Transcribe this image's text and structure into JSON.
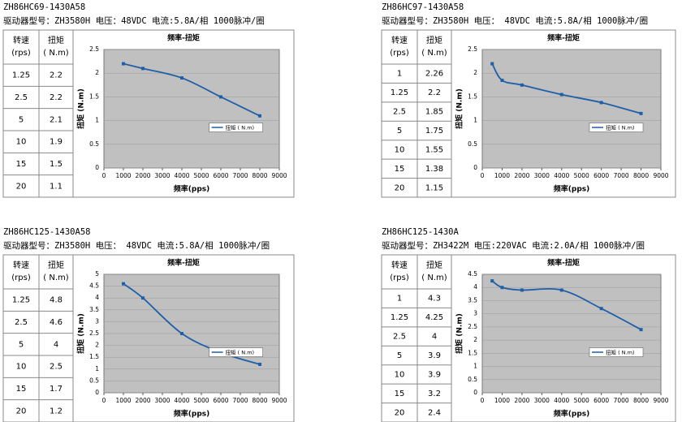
{
  "panels": [
    {
      "title": "ZH86HC69-1430A58",
      "driver": "驱动器型号：ZH3580H 电压：48VDC 电流:5.8A/相   1000脉冲/圈",
      "table": {
        "header": [
          [
            "转速",
            "(rps)"
          ],
          [
            "扭矩",
            "( N.m)"
          ]
        ],
        "rows": [
          [
            "1.25",
            "2.2"
          ],
          [
            "2.5",
            "2.2"
          ],
          [
            "5",
            "2.1"
          ],
          [
            "10",
            "1.9"
          ],
          [
            "15",
            "1.5"
          ],
          [
            "20",
            "1.1"
          ]
        ]
      },
      "chart": {
        "type": "line",
        "title": "频率-扭矩",
        "x_label": "频率(pps)",
        "y_label": "扭矩 (N.m)",
        "legend": "扭矩 ( N.m)",
        "color": "#1f5fa8",
        "x": [
          1000,
          2000,
          4000,
          6000,
          8000
        ],
        "values": [
          2.2,
          2.1,
          1.9,
          1.5,
          1.1
        ],
        "xlim": [
          0,
          9000
        ],
        "xticks": [
          0,
          1000,
          2000,
          3000,
          4000,
          5000,
          6000,
          7000,
          8000,
          9000
        ],
        "ylim": [
          0,
          2.5
        ],
        "yticks": [
          0,
          0.5,
          1,
          1.5,
          2,
          2.5
        ]
      }
    },
    {
      "title": "ZH86HC97-1430A58",
      "driver": "驱动器型号：ZH3580H 电压： 48VDC  电流:5.8A/相   1000脉冲/圈",
      "table": {
        "header": [
          [
            "转速",
            "(rps)"
          ],
          [
            "扭矩",
            "( N.m)"
          ]
        ],
        "rows": [
          [
            "1",
            "2.26"
          ],
          [
            "1.25",
            "2.2"
          ],
          [
            "2.5",
            "1.85"
          ],
          [
            "5",
            "1.75"
          ],
          [
            "10",
            "1.55"
          ],
          [
            "15",
            "1.38"
          ],
          [
            "20",
            "1.15"
          ]
        ]
      },
      "chart": {
        "type": "line",
        "title": "频率-扭矩",
        "x_label": "频率(pps)",
        "y_label": "扭矩 (N.m)",
        "legend": "扭矩 ( N.m)",
        "color": "#1f5fa8",
        "x": [
          500,
          1000,
          2000,
          4000,
          6000,
          8000
        ],
        "values": [
          2.2,
          1.85,
          1.75,
          1.55,
          1.38,
          1.15
        ],
        "xlim": [
          0,
          9000
        ],
        "xticks": [
          0,
          1000,
          2000,
          3000,
          4000,
          5000,
          6000,
          7000,
          8000,
          9000
        ],
        "ylim": [
          0,
          2.5
        ],
        "yticks": [
          0,
          0.5,
          1,
          1.5,
          2,
          2.5
        ]
      }
    },
    {
      "title": "ZH86HC125-1430A58",
      "driver": "驱动器型号：ZH3580H 电压： 48VDC 电流:5.8A/相   1000脉冲/圈",
      "table": {
        "header": [
          [
            "转速",
            "(rps)"
          ],
          [
            "扭矩",
            "( N.m)"
          ]
        ],
        "rows": [
          [
            "1.25",
            "4.8"
          ],
          [
            "2.5",
            "4.6"
          ],
          [
            "5",
            "4"
          ],
          [
            "10",
            "2.5"
          ],
          [
            "15",
            "1.7"
          ],
          [
            "20",
            "1.2"
          ]
        ]
      },
      "chart": {
        "type": "line",
        "title": "频率-扭矩",
        "x_label": "频率(pps)",
        "y_label": "扭矩 (N.m)",
        "legend": "扭矩 ( N.m)",
        "color": "#1f5fa8",
        "x": [
          1000,
          2000,
          4000,
          6000,
          8000
        ],
        "values": [
          4.6,
          4.0,
          2.5,
          1.7,
          1.2
        ],
        "xlim": [
          0,
          9000
        ],
        "xticks": [
          0,
          1000,
          2000,
          3000,
          4000,
          5000,
          6000,
          7000,
          8000,
          9000
        ],
        "ylim": [
          0,
          5
        ],
        "yticks": [
          0,
          0.5,
          1,
          1.5,
          2,
          2.5,
          3,
          3.5,
          4,
          4.5,
          5
        ]
      }
    },
    {
      "title": "ZH86HC125-1430A",
      "driver": "驱动器型号：ZH3422M  电压:220VAC   电流:2.0A/相   1000脉冲/圈",
      "table": {
        "header": [
          [
            "转速",
            "(rps)"
          ],
          [
            "扭矩",
            "( N.m)"
          ]
        ],
        "rows": [
          [
            "1",
            "4.3"
          ],
          [
            "1.25",
            "4.25"
          ],
          [
            "2.5",
            "4"
          ],
          [
            "5",
            "3.9"
          ],
          [
            "10",
            "3.9"
          ],
          [
            "15",
            "3.2"
          ],
          [
            "20",
            "2.4"
          ]
        ]
      },
      "chart": {
        "type": "line",
        "title": "频率-扭矩",
        "x_label": "频率(pps)",
        "y_label": "扭矩 (N.m)",
        "legend": "扭矩 ( N.m)",
        "color": "#1f5fa8",
        "x": [
          500,
          1000,
          2000,
          4000,
          6000,
          8000
        ],
        "values": [
          4.25,
          4.0,
          3.9,
          3.9,
          3.2,
          2.4
        ],
        "xlim": [
          0,
          9000
        ],
        "xticks": [
          0,
          1000,
          2000,
          3000,
          4000,
          5000,
          6000,
          7000,
          8000,
          9000
        ],
        "ylim": [
          0,
          4.5
        ],
        "yticks": [
          0,
          0.5,
          1,
          1.5,
          2,
          2.5,
          3,
          3.5,
          4,
          4.5
        ]
      }
    }
  ]
}
